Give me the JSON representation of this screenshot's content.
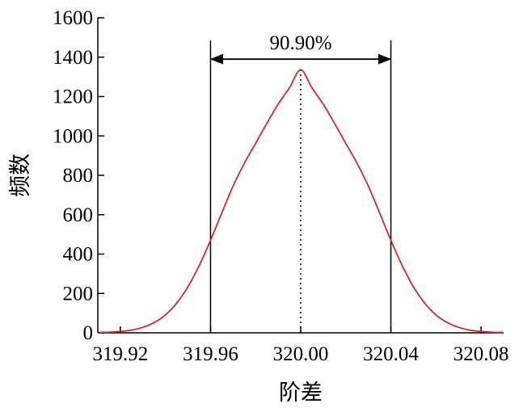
{
  "chart_data": {
    "type": "line",
    "title": "",
    "xlabel": "阶差",
    "ylabel": "频数",
    "xlim": [
      319.91,
      320.09
    ],
    "ylim": [
      0,
      1600
    ],
    "xticks": [
      319.92,
      319.96,
      320.0,
      320.04,
      320.08
    ],
    "xtick_labels": [
      "319.92",
      "319.96",
      "320.00",
      "320.04",
      "320.08"
    ],
    "yticks": [
      0,
      200,
      400,
      600,
      800,
      1000,
      1200,
      1400,
      1600
    ],
    "ytick_labels": [
      "0",
      "200",
      "400",
      "600",
      "800",
      "1000",
      "1200",
      "1400",
      "1600"
    ],
    "grid": false,
    "series": [
      {
        "color": "#d62728",
        "x": [
          319.91,
          319.915,
          319.92,
          319.925,
          319.93,
          319.935,
          319.94,
          319.945,
          319.95,
          319.955,
          319.96,
          319.965,
          319.97,
          319.975,
          319.98,
          319.985,
          319.99,
          319.995,
          320.0,
          320.005,
          320.01,
          320.015,
          320.02,
          320.025,
          320.03,
          320.035,
          320.04,
          320.045,
          320.05,
          320.055,
          320.06,
          320.065,
          320.07,
          320.075,
          320.08,
          320.085,
          320.09
        ],
        "y": [
          2,
          3,
          7,
          14,
          28,
          52,
          91,
          151,
          234,
          342,
          470,
          609,
          745,
          861,
          962,
          1064,
          1161,
          1244,
          1336,
          1244,
          1161,
          1064,
          962,
          861,
          745,
          609,
          470,
          342,
          234,
          151,
          91,
          52,
          28,
          14,
          7,
          3,
          2
        ]
      }
    ],
    "reference_lines": [
      {
        "type": "vertical",
        "x": 319.96,
        "style": "solid",
        "color": "#000000"
      },
      {
        "type": "vertical",
        "x": 320.04,
        "style": "solid",
        "color": "#000000"
      },
      {
        "type": "vertical",
        "x": 320.0,
        "y_to": 1336,
        "style": "dotted",
        "color": "#000000"
      }
    ],
    "annotations": [
      {
        "text": "90.90%",
        "arrow_from": 319.96,
        "arrow_to": 320.04,
        "arrow_y": 1390
      }
    ]
  }
}
